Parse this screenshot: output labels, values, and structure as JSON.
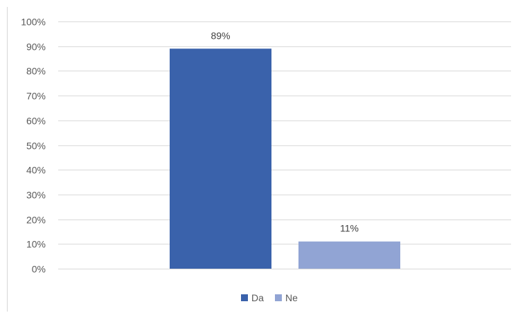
{
  "chart_data": {
    "type": "bar",
    "categories": [
      ""
    ],
    "series": [
      {
        "name": "Da",
        "values": [
          89
        ],
        "color": "#3a62ab"
      },
      {
        "name": "Ne",
        "values": [
          11
        ],
        "color": "#91a4d4"
      }
    ],
    "data_labels": [
      "89%",
      "11%"
    ],
    "ylim": [
      0,
      100
    ],
    "y_ticks": [
      0,
      10,
      20,
      30,
      40,
      50,
      60,
      70,
      80,
      90,
      100
    ],
    "y_tick_labels": [
      "0%",
      "10%",
      "20%",
      "30%",
      "40%",
      "50%",
      "60%",
      "70%",
      "80%",
      "90%",
      "100%"
    ],
    "grid": true,
    "legend": "bottom",
    "title": "",
    "xlabel": "",
    "ylabel": ""
  }
}
